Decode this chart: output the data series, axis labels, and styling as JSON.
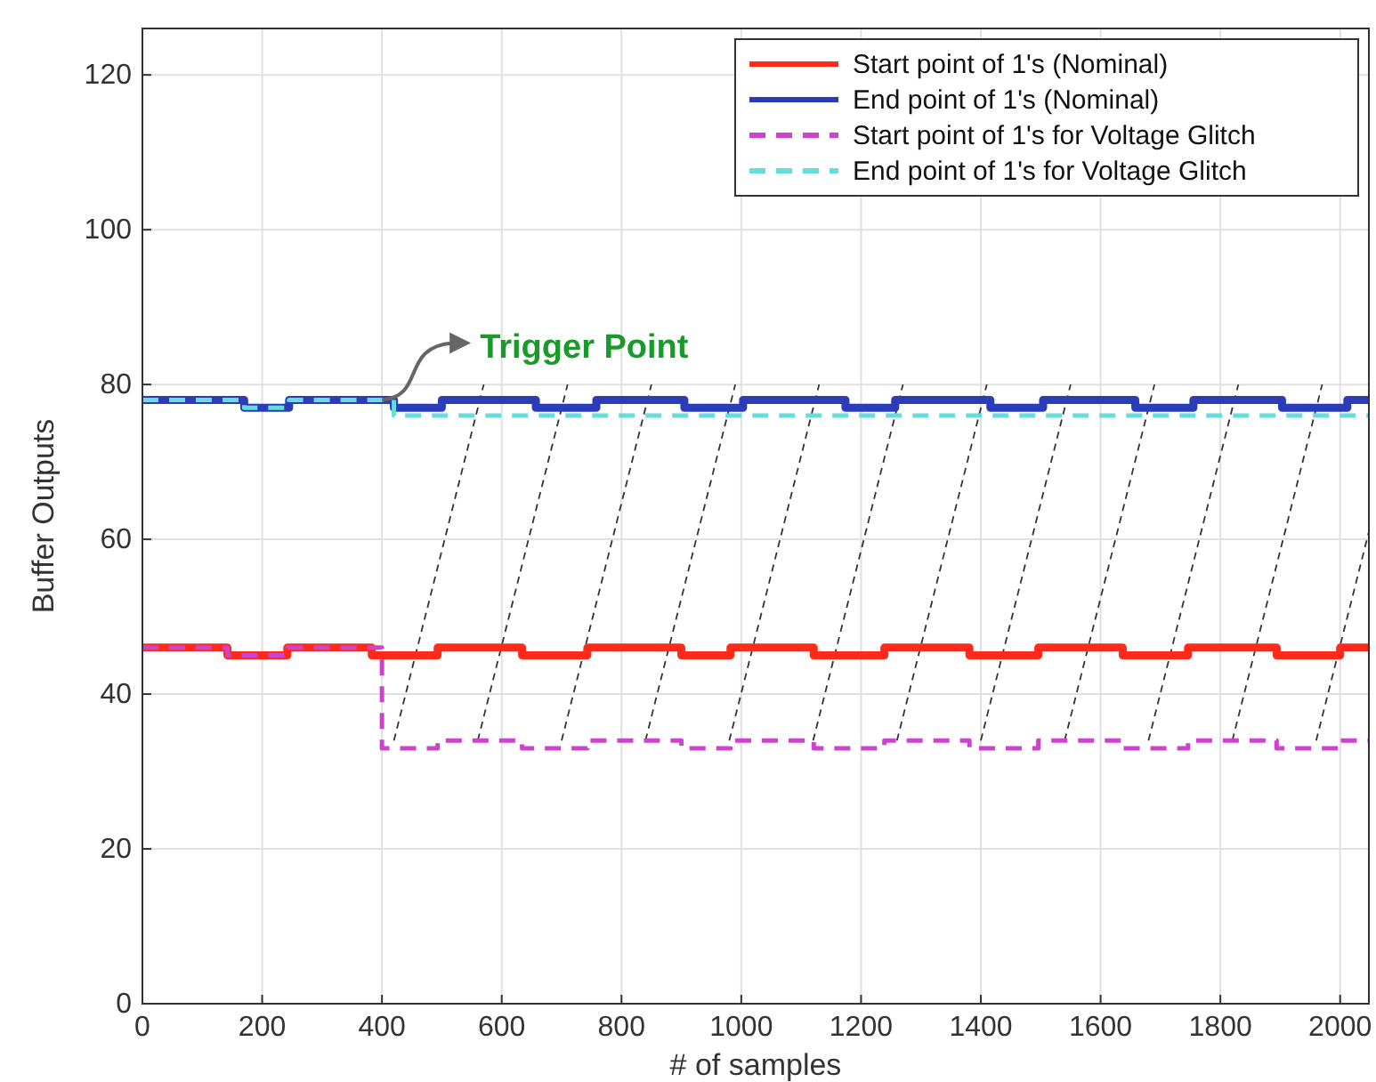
{
  "chart_data": {
    "type": "step",
    "xlabel": "# of samples",
    "ylabel": "Buffer Outputs",
    "xlim": [
      0,
      2048
    ],
    "ylim": [
      0,
      126
    ],
    "xticks": [
      0,
      200,
      400,
      600,
      800,
      1000,
      1200,
      1400,
      1600,
      1800,
      2000
    ],
    "yticks": [
      0,
      20,
      40,
      60,
      80,
      100,
      120
    ],
    "grid": true,
    "legend": "top right",
    "annotations": [
      {
        "text": "Trigger Point",
        "x": 400,
        "y": 78
      }
    ],
    "series": [
      {
        "name": "Start point of 1's (Nominal)",
        "color": "#ff2a1a",
        "line_style": "solid",
        "x": [
          0,
          142,
          242,
          383,
          493,
          634,
          743,
          900,
          982,
          1121,
          1239,
          1381,
          1496,
          1637,
          1746,
          1894,
          2000,
          2048
        ],
        "values": [
          46,
          45,
          46,
          45,
          46,
          45,
          46,
          45,
          46,
          45,
          46,
          45,
          46,
          45,
          46,
          45,
          46,
          46
        ]
      },
      {
        "name": "End point of 1's (Nominal)",
        "color": "#2a3cb8",
        "line_style": "solid",
        "x": [
          0,
          170,
          245,
          420,
          500,
          657,
          758,
          905,
          1003,
          1174,
          1257,
          1416,
          1504,
          1658,
          1755,
          1903,
          2012,
          2048
        ],
        "values": [
          78,
          77,
          78,
          77,
          78,
          77,
          78,
          77,
          78,
          77,
          78,
          77,
          78,
          77,
          78,
          77,
          78,
          78
        ]
      },
      {
        "name": "Start point of 1's for Voltage Glitch",
        "color": "#cc44cc",
        "line_style": "dashed",
        "x": [
          0,
          142,
          242,
          400,
          493,
          634,
          743,
          900,
          982,
          1121,
          1239,
          1381,
          1496,
          1637,
          1746,
          1894,
          2000,
          2048
        ],
        "values": [
          46,
          45,
          46,
          33,
          34,
          33,
          34,
          33,
          34,
          33,
          34,
          33,
          34,
          33,
          34,
          33,
          34,
          34
        ]
      },
      {
        "name": "End point of 1's for Voltage Glitch",
        "color": "#66dddd",
        "line_style": "dashed",
        "x": [
          0,
          170,
          245,
          420,
          2048
        ],
        "values": [
          78,
          77,
          78,
          76,
          76
        ]
      }
    ]
  }
}
